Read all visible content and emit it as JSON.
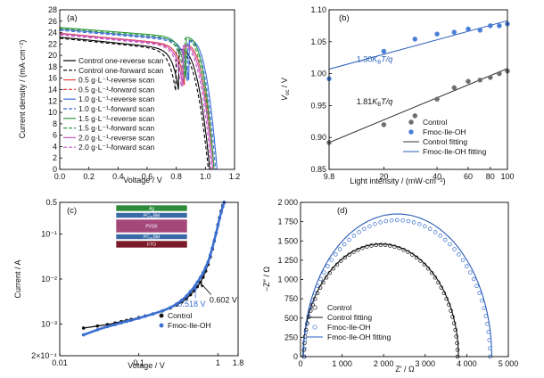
{
  "chart_data": [
    {
      "panel": "(a)",
      "type": "line",
      "xlabel": "Voltage / V",
      "ylabel": "Current density / (mA·cm⁻²)",
      "xlim": [
        0,
        1.2
      ],
      "ylim": [
        0,
        28
      ],
      "xticks": [
        0.0,
        0.2,
        0.4,
        0.6,
        0.8,
        1.0,
        1.2
      ],
      "xtick_labels": [
        "0.0",
        "0.2",
        "0.4",
        "0.6",
        "0.8",
        "1.0",
        "1.2"
      ],
      "yticks": [
        0,
        2,
        4,
        6,
        8,
        10,
        12,
        14,
        16,
        18,
        20,
        22,
        24,
        26,
        28
      ],
      "ytick_labels": [
        "0",
        "2",
        "4",
        "6",
        "8",
        "10",
        "12",
        "14",
        "16",
        "18",
        "20",
        "22",
        "24",
        "26",
        "28"
      ],
      "legend_position": "left",
      "series": [
        {
          "name": "Control one-reverse scan",
          "color": "#000000",
          "dash": "solid",
          "jsc": 23.2,
          "voc": 1.03,
          "slope": 2.6,
          "vk": 0.82,
          "n": 0.042
        },
        {
          "name": "Control one-forward scan",
          "color": "#000000",
          "dash": "dashed",
          "jsc": 23.0,
          "voc": 1.02,
          "slope": 2.6,
          "vk": 0.8,
          "n": 0.044
        },
        {
          "name": "0.5 g·L⁻¹-reverse scan",
          "color": "#e8413c",
          "dash": "solid",
          "jsc": 23.9,
          "voc": 1.06,
          "slope": 2.4,
          "vk": 0.86,
          "n": 0.04
        },
        {
          "name": "0.5 g·L⁻¹-forward scan",
          "color": "#e8413c",
          "dash": "dashed",
          "jsc": 23.7,
          "voc": 1.05,
          "slope": 2.4,
          "vk": 0.85,
          "n": 0.041
        },
        {
          "name": "1.0 g·L⁻¹-reverse scan",
          "color": "#3a6bd6",
          "dash": "solid",
          "jsc": 24.6,
          "voc": 1.08,
          "slope": 2.2,
          "vk": 0.89,
          "n": 0.038
        },
        {
          "name": "1.0 g·L⁻¹-forward scan",
          "color": "#3a6bd6",
          "dash": "dashed",
          "jsc": 24.4,
          "voc": 1.07,
          "slope": 2.2,
          "vk": 0.88,
          "n": 0.039
        },
        {
          "name": "1.5 g·L⁻¹-reverse scan",
          "color": "#2e9a3c",
          "dash": "solid",
          "jsc": 24.9,
          "voc": 1.06,
          "slope": 2.0,
          "vk": 0.87,
          "n": 0.039
        },
        {
          "name": "1.5 g·L⁻¹-forward scan",
          "color": "#2e9a3c",
          "dash": "dashed",
          "jsc": 24.7,
          "voc": 1.05,
          "slope": 2.0,
          "vk": 0.86,
          "n": 0.04
        },
        {
          "name": "2.0 g·L⁻¹-reverse scan",
          "color": "#c35ac8",
          "dash": "solid",
          "jsc": 23.8,
          "voc": 1.05,
          "slope": 2.4,
          "vk": 0.85,
          "n": 0.041
        },
        {
          "name": "2.0 g·L⁻¹-forward scan",
          "color": "#c35ac8",
          "dash": "dashed",
          "jsc": 23.6,
          "voc": 1.04,
          "slope": 2.4,
          "vk": 0.84,
          "n": 0.042
        }
      ]
    },
    {
      "panel": "(b)",
      "type": "scatter",
      "xlabel": "Light intensity / (mW·cm⁻²)",
      "ylabel": "V_oc / V",
      "xscale": "log",
      "xlim": [
        9.8,
        100
      ],
      "ylim": [
        0.85,
        1.1
      ],
      "xticks": [
        9.8,
        20,
        40,
        60,
        80,
        100
      ],
      "xtick_labels": [
        "9.8",
        "20",
        "40",
        "60",
        "80",
        "100"
      ],
      "yticks": [
        0.85,
        0.9,
        0.95,
        1.0,
        1.05,
        1.1
      ],
      "ytick_labels": [
        "0.85",
        "0.90",
        "0.95",
        "1.00",
        "1.05",
        "1.10"
      ],
      "legend_position": "bottom-right",
      "series": [
        {
          "name": "Control",
          "color": "#6e6e6e",
          "marker": "o",
          "x": [
            9.8,
            20,
            30,
            40,
            50,
            60,
            70,
            80,
            90,
            100
          ],
          "y": [
            0.892,
            0.92,
            0.934,
            0.96,
            0.978,
            0.988,
            0.99,
            0.994,
            1.0,
            1.004
          ]
        },
        {
          "name": "Fmoc-Ile-OH",
          "color": "#4a7fd6",
          "marker": "o",
          "x": [
            9.8,
            20,
            30,
            40,
            50,
            60,
            70,
            80,
            90,
            100
          ],
          "y": [
            0.992,
            1.035,
            1.054,
            1.062,
            1.065,
            1.07,
            1.068,
            1.075,
            1.075,
            1.078
          ]
        },
        {
          "name": "Control fitting",
          "color": "#333333",
          "type": "line",
          "x": [
            9.8,
            100
          ],
          "y": [
            0.892,
            1.008
          ]
        },
        {
          "name": "Fmoc-Ile-OH fitting",
          "color": "#2a5db8",
          "type": "line",
          "x": [
            9.8,
            100
          ],
          "y": [
            1.007,
            1.083
          ]
        }
      ],
      "annotations": [
        {
          "text": "1.30",
          "suffix": "K",
          "sub": "B",
          "tail": "T/q",
          "color": "#2a5db8",
          "x": 14,
          "y": 1.018
        },
        {
          "text": "1.81",
          "suffix": "K",
          "sub": "B",
          "tail": "T/q",
          "color": "#111111",
          "x": 14,
          "y": 0.952
        }
      ]
    },
    {
      "panel": "(c)",
      "type": "line",
      "xlabel": "Votage / V",
      "ylabel": "Current / A",
      "xscale": "log",
      "yscale": "log",
      "xlim": [
        0.01,
        1.8
      ],
      "ylim": [
        0.0002,
        0.5
      ],
      "xticks": [
        0.01,
        0.1,
        1,
        1.8
      ],
      "xtick_labels": [
        "0.01",
        "0.1",
        "1",
        "1.8"
      ],
      "yticks": [
        0.0002,
        0.001,
        0.01,
        0.1,
        0.5
      ],
      "ytick_labels": [
        "2×10⁻⁴",
        "10⁻³",
        "10⁻²",
        "10⁻¹",
        "0.5"
      ],
      "legend_position": "bottom-right",
      "series": [
        {
          "name": "Control",
          "color": "#111111",
          "marker": "o",
          "x": [
            0.02,
            0.03,
            0.04,
            0.05,
            0.06,
            0.07,
            0.08,
            0.1,
            0.12,
            0.15,
            0.2,
            0.25,
            0.3,
            0.35,
            0.4,
            0.45,
            0.5,
            0.55,
            0.602,
            0.65,
            0.7,
            0.75,
            0.8,
            0.85,
            0.9,
            0.95,
            1.0,
            1.05,
            1.1,
            1.15,
            1.2
          ],
          "y": [
            0.00082,
            0.00091,
            0.00098,
            0.00106,
            0.00114,
            0.00121,
            0.00128,
            0.0014,
            0.00152,
            0.00168,
            0.00196,
            0.00228,
            0.00265,
            0.0031,
            0.0037,
            0.0045,
            0.0055,
            0.0068,
            0.0085,
            0.011,
            0.015,
            0.021,
            0.031,
            0.046,
            0.07,
            0.105,
            0.16,
            0.23,
            0.32,
            0.42,
            0.5
          ]
        },
        {
          "name": "Fmoc-Ile-OH",
          "color": "#3b6fd0",
          "marker": "o",
          "x": [
            0.02,
            0.03,
            0.04,
            0.05,
            0.06,
            0.07,
            0.08,
            0.1,
            0.12,
            0.15,
            0.2,
            0.25,
            0.3,
            0.35,
            0.4,
            0.45,
            0.518,
            0.55,
            0.6,
            0.65,
            0.7,
            0.75,
            0.8,
            0.85,
            0.9,
            0.95,
            1.0,
            1.05,
            1.1,
            1.15,
            1.2
          ],
          "y": [
            0.00058,
            0.00075,
            0.00088,
            0.00098,
            0.00107,
            0.00115,
            0.00122,
            0.00136,
            0.0015,
            0.00168,
            0.00198,
            0.00232,
            0.0028,
            0.0034,
            0.0042,
            0.0053,
            0.0072,
            0.0085,
            0.0108,
            0.0138,
            0.018,
            0.024,
            0.034,
            0.049,
            0.072,
            0.105,
            0.155,
            0.22,
            0.3,
            0.4,
            0.5
          ]
        }
      ],
      "annotations": [
        {
          "text": "0.518 V",
          "color": "#3b6fd0",
          "x": 0.518,
          "y": 0.0072
        },
        {
          "text": "0.602 V",
          "color": "#111111",
          "x": 0.602,
          "y": 0.0085
        }
      ],
      "inset_layers": [
        "Ag",
        "PC₆₁BM",
        "PVSK",
        "PC₆₁BM",
        "FTO"
      ]
    },
    {
      "panel": "(d)",
      "type": "scatter",
      "xlabel": "Z′ / Ω",
      "ylabel": "−Z″ / Ω",
      "xlim": [
        0,
        5000
      ],
      "ylim": [
        0,
        2000
      ],
      "xticks": [
        0,
        1000,
        2000,
        3000,
        4000,
        5000
      ],
      "xtick_labels": [
        "0",
        "1 000",
        "2 000",
        "3 000",
        "4 000",
        "5 000"
      ],
      "yticks": [
        0,
        250,
        500,
        750,
        1000,
        1250,
        1500,
        1750,
        2000
      ],
      "ytick_labels": [
        "0",
        "250",
        "500",
        "750",
        "1 000",
        "1 250",
        "1 500",
        "1 750",
        "2 000"
      ],
      "legend_position": "bottom-left",
      "series": [
        {
          "name": "Control",
          "color": "#111111",
          "marker": "open-circle",
          "arc": {
            "r0": 80,
            "r1": 3780,
            "ymax": 1450
          }
        },
        {
          "name": "Control fitting",
          "color": "#111111",
          "type": "line",
          "arc": {
            "r0": 60,
            "r1": 3800,
            "ymax": 1460
          }
        },
        {
          "name": "Fmoc-Ile-OH",
          "color": "#3b6fd0",
          "marker": "open-circle",
          "arc": {
            "r0": 90,
            "r1": 4560,
            "ymax": 1770
          }
        },
        {
          "name": "Fmoc-Ile-OH fitting",
          "color": "#2a5db8",
          "type": "line",
          "arc": {
            "r0": 70,
            "r1": 4600,
            "ymax": 1850
          }
        }
      ]
    }
  ]
}
